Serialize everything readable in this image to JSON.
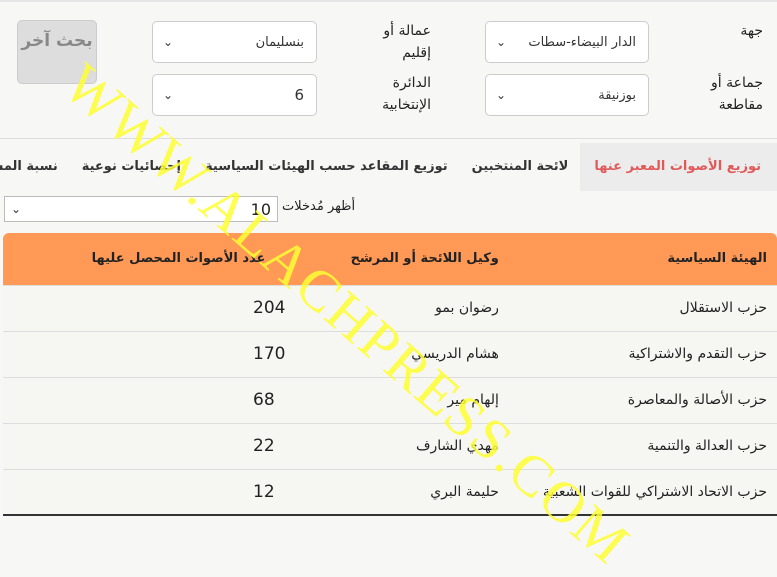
{
  "filters": {
    "region_label": "جهة",
    "region_value": "الدار البيضاء-سطات",
    "prefecture_label": "عمالة أو إقليم",
    "prefecture_value": "بنسليمان",
    "commune_label": "جماعة أو مقاطعة",
    "commune_value": "بوزنيقة",
    "district_label": "الدائرة الإنتخابية",
    "district_value": "6",
    "search_again_label": "بحث آخر"
  },
  "tabs": [
    {
      "label": "توزيع الأصوات المعبر عنها",
      "active": true
    },
    {
      "label": "لائحة المنتخبين"
    },
    {
      "label": "توزيع المقاعد حسب الهيئات السياسية"
    },
    {
      "label": "إحصائيات نوعية"
    },
    {
      "label": "نسبة المشاركة"
    }
  ],
  "entries": {
    "label": "أظهر مُدخلات",
    "value": "10"
  },
  "table": {
    "headers": [
      "الهيئة السياسية",
      "وكيل اللائحة أو المرشح",
      "عدد الأصوات المحصل عليها"
    ],
    "rows": [
      [
        "حزب الاستقلال",
        "رضوان بمو",
        "204"
      ],
      [
        "حزب التقدم والاشتراكية",
        "هشام الدريسي",
        "170"
      ],
      [
        "حزب الأصالة والمعاصرة",
        "إلهام مير",
        "68"
      ],
      [
        "حزب العدالة والتنمية",
        "مهدي الشارف",
        "22"
      ],
      [
        "حزب الاتحاد الاشتراكي للقوات الشعبية",
        "حليمة البري",
        "12"
      ]
    ]
  },
  "watermark": "WWW.ALACHPRESS.COM",
  "colors": {
    "header": "#ff9955",
    "active_tab": "#e15a5a",
    "watermark": "#ffff33"
  }
}
